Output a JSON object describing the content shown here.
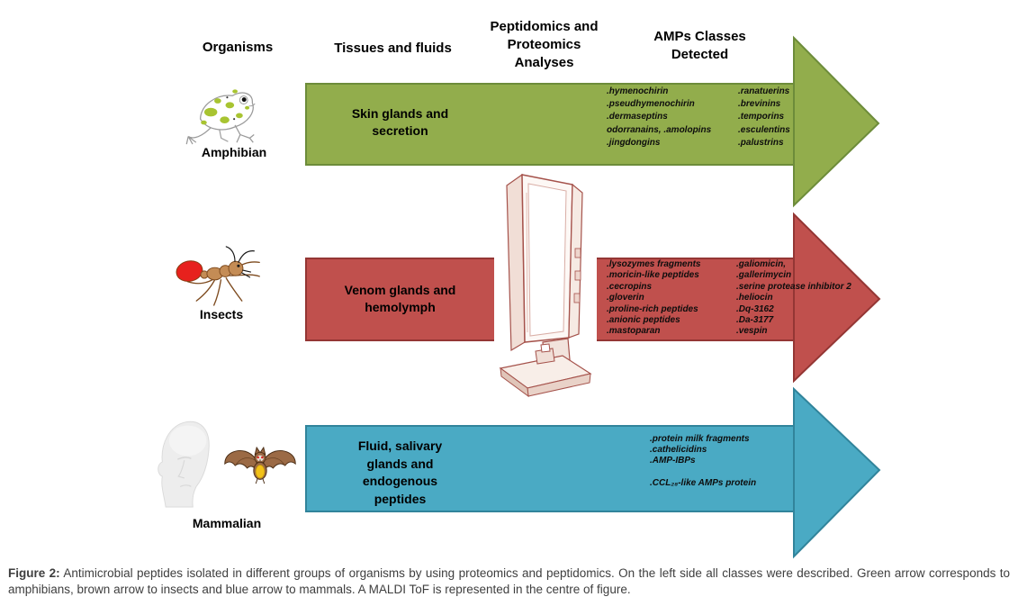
{
  "headers": {
    "organisms": "Organisms",
    "tissues_fluids": "Tissues and fluids",
    "analyses": "Peptidomics and\nProteomics\nAnalyses",
    "amps_detected": "AMPs Classes\nDetected"
  },
  "rows": [
    {
      "organism_label": "Amphibian",
      "icon": "frog-illustration",
      "tissue_label": "Skin glands and\nsecretion",
      "arrow_fill": "#92ad4c",
      "arrow_stroke": "#6d8c3a",
      "amps_left": [
        ".hymenochirin",
        ".pseudhymenochirin",
        ".dermaseptins",
        "odorranains, .amolopins",
        ".jingdongins"
      ],
      "amps_right": [
        ".ranatuerins",
        ".brevinins",
        ".temporins",
        ".esculentins",
        ".palustrins"
      ]
    },
    {
      "organism_label": "Insects",
      "icon": "ant-illustration",
      "tissue_label": "Venom glands and\nhemolymph",
      "arrow_fill": "#c0504d",
      "arrow_stroke": "#943634",
      "amps_left": [
        ".lysozymes fragments",
        ".moricin-like peptides",
        ".cecropins",
        ".gloverin",
        ".proline-rich peptides",
        ".anionic peptides",
        ".mastoparan"
      ],
      "amps_right": [
        ".galiomicin,",
        ".gallerimycin",
        ".serine protease inhibitor 2",
        ".heliocin",
        ".Dq-3162",
        ".Da-3177",
        ".vespin"
      ]
    },
    {
      "organism_label": "Mammalian",
      "icon": "human-head-and-bat-illustration",
      "tissue_label": "Fluid, salivary\nglands and\nendogenous\npeptides",
      "arrow_fill": "#4aaac4",
      "arrow_stroke": "#31849b",
      "amps_left": [
        ".protein milk fragments",
        ".cathelicidins",
        ".AMP-IBPs",
        "",
        ".CCL₂₈-like AMPs protein"
      ],
      "amps_right": []
    }
  ],
  "caption": {
    "label": "Figure 2:",
    "text": "Antimicrobial peptides isolated in different groups of organisms by using proteomics and peptidomics. On the left side all classes were described. Green arrow corresponds to amphibians, brown arrow to insects and blue arrow to mammals. A MALDI ToF is represented in the centre of figure."
  }
}
